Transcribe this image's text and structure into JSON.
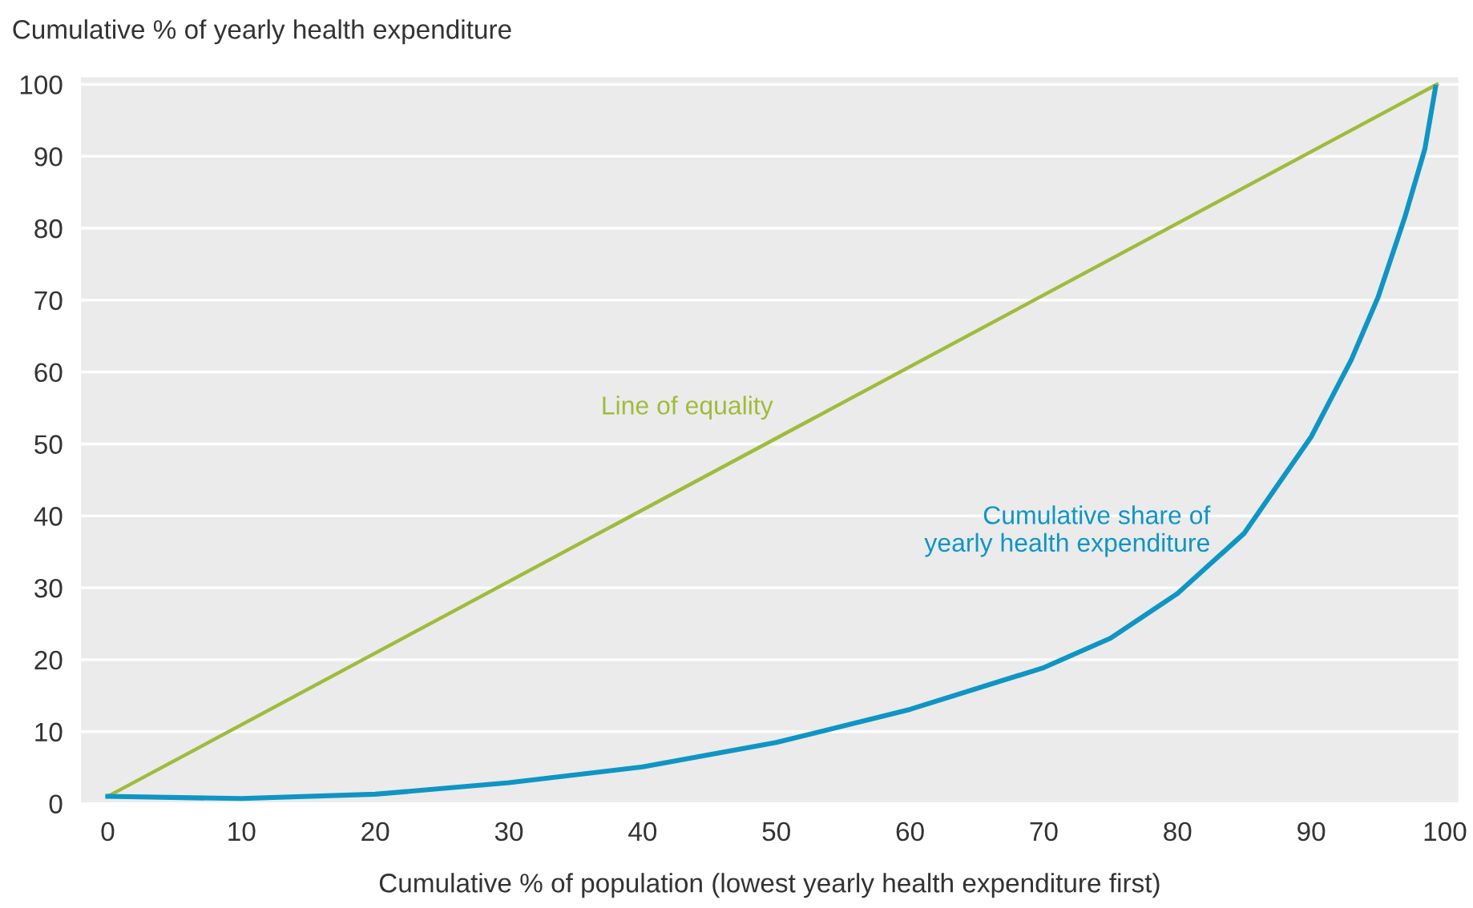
{
  "chart_data": {
    "type": "line",
    "xlabel": "Cumulative % of population (lowest yearly health expenditure first)",
    "ylabel": "Cumulative % of yearly health expenditure",
    "series": [
      {
        "name": "Line of equality",
        "color": "#9fbb3c",
        "x": [
          0,
          99.4
        ],
        "values": [
          1,
          100
        ]
      },
      {
        "name": "Cumulative share of\nyearly health expenditure",
        "color": "#0f95c4",
        "x": [
          0,
          10,
          20,
          30,
          40,
          50,
          60,
          70,
          75,
          80,
          85,
          90,
          93,
          95,
          97,
          98.5,
          99.3
        ],
        "values": [
          1,
          0.7,
          1.3,
          2.9,
          5.1,
          8.5,
          13.1,
          18.9,
          23,
          29.2,
          37.6,
          51,
          61.7,
          70.4,
          81.5,
          91,
          99.6
        ]
      }
    ],
    "xlim": [
      -2,
      101
    ],
    "ylim": [
      0,
      101
    ],
    "xticks": [
      0,
      10,
      20,
      30,
      40,
      50,
      60,
      70,
      80,
      90,
      100
    ],
    "yticks": [
      0,
      10,
      20,
      30,
      40,
      50,
      60,
      70,
      80,
      90,
      100
    ],
    "grid": "y",
    "legend": false,
    "marker": "none",
    "line_style": "solid"
  }
}
